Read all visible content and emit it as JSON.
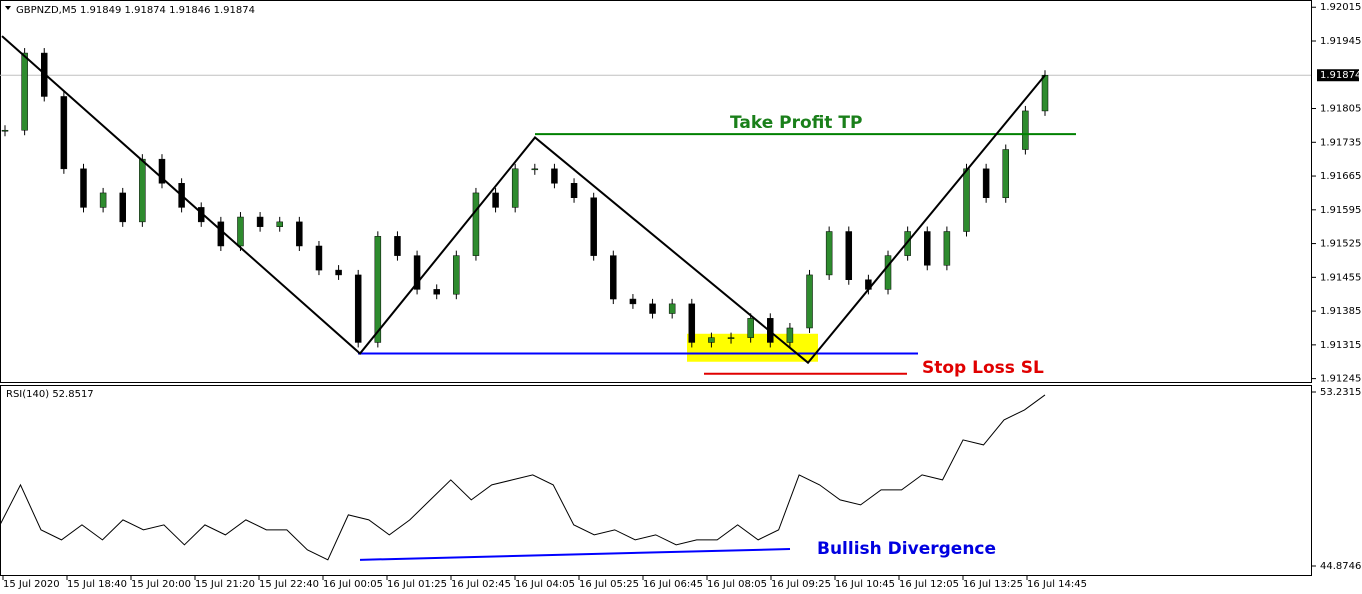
{
  "header": "GBPNZD,M5  1.91849 1.91874 1.91846 1.91874",
  "price_ticks": [
    1.92015,
    1.91945,
    1.91805,
    1.91735,
    1.91665,
    1.91595,
    1.91525,
    1.91455,
    1.91385,
    1.91315,
    1.91245
  ],
  "price_range": [
    1.91238,
    1.9203
  ],
  "current_price": 1.91874,
  "closes": [
    1.9176,
    1.9192,
    1.9183,
    1.9168,
    1.916,
    1.9163,
    1.9157,
    1.917,
    1.9165,
    1.916,
    1.9157,
    1.9152,
    1.9158,
    1.9156,
    1.9157,
    1.9152,
    1.9147,
    1.9146,
    1.9132,
    1.9154,
    1.915,
    1.9143,
    1.9142,
    1.915,
    1.9163,
    1.916,
    1.9168,
    1.9168,
    1.9165,
    1.9162,
    1.915,
    1.9141,
    1.914,
    1.9138,
    1.914,
    1.9132,
    1.9133,
    1.9133,
    1.9137,
    1.9132,
    1.9135,
    1.9146,
    1.9155,
    1.9145,
    1.9143,
    1.915,
    1.9155,
    1.9148,
    1.9155,
    1.9168,
    1.9162,
    1.9172,
    1.918,
    1.91874
  ],
  "zigzag": [
    1.91955,
    1.91297,
    1.91745,
    1.91278,
    1.91874
  ],
  "take_profit": {
    "label": "Take Profit TP",
    "price": 1.91752
  },
  "stop_loss": {
    "label": "Stop Loss SL",
    "price": 1.91255,
    "support": 1.91297
  },
  "entry_zone": [
    1.9128,
    1.91338
  ],
  "rsi": {
    "label": "RSI(140) 52.8517",
    "range": [
      44.442,
      53.568
    ],
    "ticks": [
      53.2315,
      44.8746
    ],
    "values": [
      46.85,
      48.77,
      46.61,
      46.13,
      46.85,
      46.13,
      47.09,
      46.61,
      46.85,
      45.89,
      46.85,
      46.37,
      47.09,
      46.61,
      46.61,
      45.65,
      45.17,
      47.33,
      47.09,
      46.37,
      47.09,
      48.05,
      49.01,
      48.05,
      48.77,
      49.01,
      49.25,
      48.77,
      46.85,
      46.37,
      46.61,
      46.13,
      46.37,
      45.89,
      46.13,
      46.13,
      46.85,
      46.13,
      46.61,
      49.25,
      48.77,
      48.05,
      47.81,
      48.53,
      48.53,
      49.25,
      49.01,
      50.93,
      50.69,
      51.89,
      52.37,
      53.09
    ],
    "divergence": {
      "label": "Bullish Divergence",
      "values": [
        45.17,
        45.69
      ]
    }
  },
  "time_labels": [
    "15 Jul 2020",
    "15 Jul 18:40",
    "15 Jul 20:00",
    "15 Jul 21:20",
    "15 Jul 22:40",
    "16 Jul 00:05",
    "16 Jul 01:25",
    "16 Jul 02:45",
    "16 Jul 04:05",
    "16 Jul 05:25",
    "16 Jul 06:45",
    "16 Jul 08:05",
    "16 Jul 09:25",
    "16 Jul 10:45",
    "16 Jul 12:05",
    "16 Jul 13:25",
    "16 Jul 14:45"
  ]
}
